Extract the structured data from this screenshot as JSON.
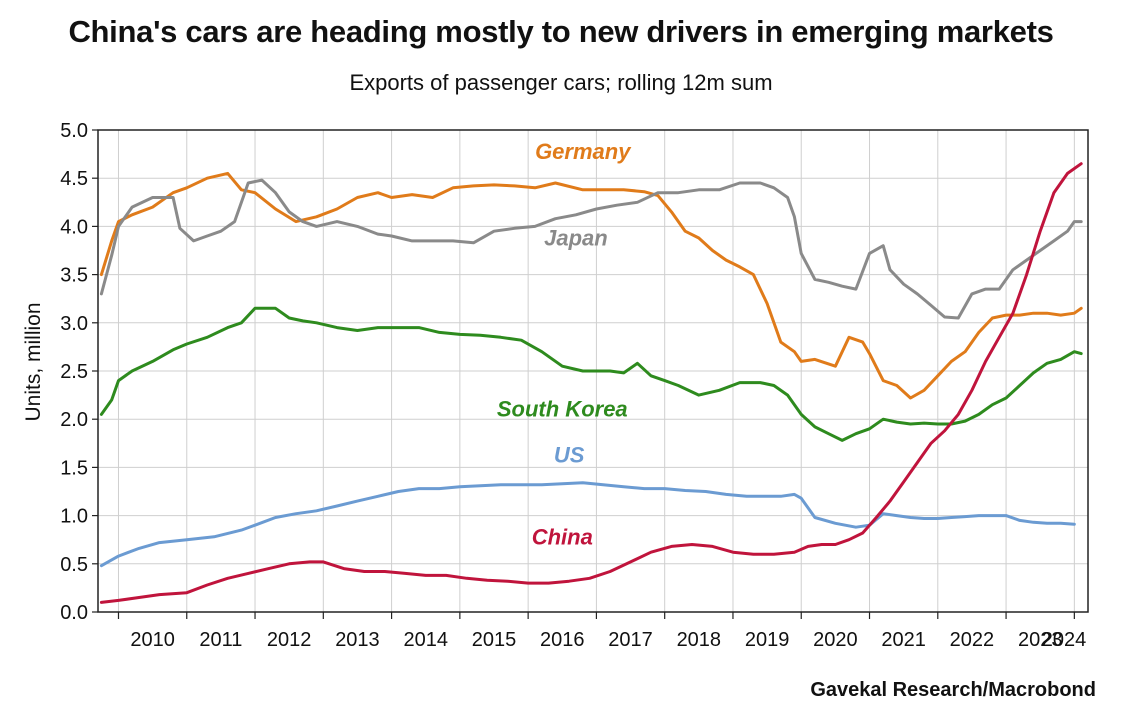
{
  "title": "China's cars are heading mostly to new drivers in emerging markets",
  "subtitle": "Exports of passenger cars; rolling 12m sum",
  "source": "Gavekal Research/Macrobond",
  "chart_data": {
    "type": "line",
    "ylabel": "Units, million",
    "ylim": [
      0,
      5.0
    ],
    "xlim": [
      2009.7,
      2024.2
    ],
    "yticks": [
      "0.0",
      "0.5",
      "1.0",
      "1.5",
      "2.0",
      "2.5",
      "3.0",
      "3.5",
      "4.0",
      "4.5",
      "5.0"
    ],
    "xticks": [
      "2010",
      "2011",
      "2012",
      "2013",
      "2014",
      "2015",
      "2016",
      "2017",
      "2018",
      "2019",
      "2020",
      "2021",
      "2022",
      "2023",
      "2024"
    ],
    "grid": true,
    "series": [
      {
        "name": "Germany",
        "color": "#E07B1A",
        "x": [
          2009.75,
          2009.9,
          2010.0,
          2010.2,
          2010.5,
          2010.8,
          2011.0,
          2011.3,
          2011.6,
          2011.8,
          2012.0,
          2012.3,
          2012.6,
          2012.9,
          2013.2,
          2013.5,
          2013.8,
          2014.0,
          2014.3,
          2014.6,
          2014.9,
          2015.2,
          2015.5,
          2015.8,
          2016.1,
          2016.4,
          2016.8,
          2017.1,
          2017.4,
          2017.7,
          2017.9,
          2018.1,
          2018.3,
          2018.5,
          2018.7,
          2018.9,
          2019.1,
          2019.3,
          2019.5,
          2019.7,
          2019.9,
          2020.0,
          2020.2,
          2020.5,
          2020.7,
          2020.9,
          2021.0,
          2021.2,
          2021.4,
          2021.6,
          2021.8,
          2022.0,
          2022.2,
          2022.4,
          2022.6,
          2022.8,
          2023.0,
          2023.2,
          2023.4,
          2023.6,
          2023.8,
          2024.0,
          2024.1
        ],
        "y": [
          3.5,
          3.85,
          4.05,
          4.12,
          4.2,
          4.35,
          4.4,
          4.5,
          4.55,
          4.38,
          4.35,
          4.18,
          4.05,
          4.1,
          4.18,
          4.3,
          4.35,
          4.3,
          4.33,
          4.3,
          4.4,
          4.42,
          4.43,
          4.42,
          4.4,
          4.45,
          4.38,
          4.38,
          4.38,
          4.36,
          4.32,
          4.15,
          3.95,
          3.88,
          3.75,
          3.65,
          3.58,
          3.5,
          3.2,
          2.8,
          2.7,
          2.6,
          2.62,
          2.55,
          2.85,
          2.8,
          2.68,
          2.4,
          2.35,
          2.22,
          2.3,
          2.45,
          2.6,
          2.7,
          2.9,
          3.05,
          3.08,
          3.08,
          3.1,
          3.1,
          3.08,
          3.1,
          3.15
        ]
      },
      {
        "name": "Japan",
        "color": "#8A8A8A",
        "x": [
          2009.75,
          2009.9,
          2010.0,
          2010.2,
          2010.5,
          2010.8,
          2010.9,
          2011.1,
          2011.3,
          2011.5,
          2011.7,
          2011.9,
          2012.1,
          2012.3,
          2012.5,
          2012.7,
          2012.9,
          2013.2,
          2013.5,
          2013.8,
          2014.0,
          2014.3,
          2014.6,
          2014.9,
          2015.2,
          2015.5,
          2015.8,
          2016.1,
          2016.4,
          2016.7,
          2017.0,
          2017.3,
          2017.6,
          2017.9,
          2018.2,
          2018.5,
          2018.8,
          2019.1,
          2019.4,
          2019.6,
          2019.8,
          2019.9,
          2020.0,
          2020.2,
          2020.4,
          2020.6,
          2020.8,
          2021.0,
          2021.2,
          2021.3,
          2021.5,
          2021.7,
          2021.9,
          2022.1,
          2022.3,
          2022.5,
          2022.7,
          2022.9,
          2023.1,
          2023.3,
          2023.5,
          2023.7,
          2023.9,
          2024.0,
          2024.1
        ],
        "y": [
          3.3,
          3.7,
          4.0,
          4.2,
          4.3,
          4.3,
          3.98,
          3.85,
          3.9,
          3.95,
          4.05,
          4.45,
          4.48,
          4.35,
          4.15,
          4.05,
          4.0,
          4.05,
          4.0,
          3.92,
          3.9,
          3.85,
          3.85,
          3.85,
          3.83,
          3.95,
          3.98,
          4.0,
          4.08,
          4.12,
          4.18,
          4.22,
          4.25,
          4.35,
          4.35,
          4.38,
          4.38,
          4.45,
          4.45,
          4.4,
          4.3,
          4.1,
          3.72,
          3.45,
          3.42,
          3.38,
          3.35,
          3.72,
          3.8,
          3.55,
          3.4,
          3.3,
          3.18,
          3.06,
          3.05,
          3.3,
          3.35,
          3.35,
          3.55,
          3.65,
          3.75,
          3.85,
          3.95,
          4.05,
          4.05
        ]
      },
      {
        "name": "South Korea",
        "color": "#2E8B1E",
        "x": [
          2009.75,
          2009.9,
          2010.0,
          2010.2,
          2010.5,
          2010.8,
          2011.0,
          2011.3,
          2011.6,
          2011.8,
          2012.0,
          2012.3,
          2012.5,
          2012.7,
          2012.9,
          2013.2,
          2013.5,
          2013.8,
          2014.1,
          2014.4,
          2014.7,
          2015.0,
          2015.3,
          2015.6,
          2015.9,
          2016.2,
          2016.5,
          2016.8,
          2017.0,
          2017.2,
          2017.4,
          2017.6,
          2017.8,
          2018.0,
          2018.2,
          2018.5,
          2018.8,
          2019.1,
          2019.4,
          2019.6,
          2019.8,
          2020.0,
          2020.2,
          2020.4,
          2020.6,
          2020.8,
          2021.0,
          2021.2,
          2021.4,
          2021.6,
          2021.8,
          2022.0,
          2022.2,
          2022.4,
          2022.6,
          2022.8,
          2023.0,
          2023.2,
          2023.4,
          2023.6,
          2023.8,
          2024.0,
          2024.1
        ],
        "y": [
          2.05,
          2.2,
          2.4,
          2.5,
          2.6,
          2.72,
          2.78,
          2.85,
          2.95,
          3.0,
          3.15,
          3.15,
          3.05,
          3.02,
          3.0,
          2.95,
          2.92,
          2.95,
          2.95,
          2.95,
          2.9,
          2.88,
          2.87,
          2.85,
          2.82,
          2.7,
          2.55,
          2.5,
          2.5,
          2.5,
          2.48,
          2.58,
          2.45,
          2.4,
          2.35,
          2.25,
          2.3,
          2.38,
          2.38,
          2.35,
          2.25,
          2.05,
          1.92,
          1.85,
          1.78,
          1.85,
          1.9,
          2.0,
          1.97,
          1.95,
          1.96,
          1.95,
          1.95,
          1.98,
          2.05,
          2.15,
          2.22,
          2.35,
          2.48,
          2.58,
          2.62,
          2.7,
          2.68
        ]
      },
      {
        "name": "US",
        "color": "#6B9BD2",
        "x": [
          2009.75,
          2010.0,
          2010.3,
          2010.6,
          2011.0,
          2011.4,
          2011.8,
          2012.0,
          2012.3,
          2012.6,
          2012.9,
          2013.2,
          2013.5,
          2013.8,
          2014.1,
          2014.4,
          2014.7,
          2015.0,
          2015.3,
          2015.6,
          2015.9,
          2016.2,
          2016.5,
          2016.8,
          2017.1,
          2017.4,
          2017.7,
          2018.0,
          2018.3,
          2018.6,
          2018.9,
          2019.2,
          2019.5,
          2019.7,
          2019.9,
          2020.0,
          2020.2,
          2020.5,
          2020.8,
          2021.0,
          2021.2,
          2021.4,
          2021.6,
          2021.8,
          2022.0,
          2022.2,
          2022.4,
          2022.6,
          2022.8,
          2023.0,
          2023.2,
          2023.4,
          2023.6,
          2023.8,
          2024.0
        ],
        "y": [
          0.48,
          0.58,
          0.66,
          0.72,
          0.75,
          0.78,
          0.85,
          0.9,
          0.98,
          1.02,
          1.05,
          1.1,
          1.15,
          1.2,
          1.25,
          1.28,
          1.28,
          1.3,
          1.31,
          1.32,
          1.32,
          1.32,
          1.33,
          1.34,
          1.32,
          1.3,
          1.28,
          1.28,
          1.26,
          1.25,
          1.22,
          1.2,
          1.2,
          1.2,
          1.22,
          1.18,
          0.98,
          0.92,
          0.88,
          0.9,
          1.02,
          1.0,
          0.98,
          0.97,
          0.97,
          0.98,
          0.99,
          1.0,
          1.0,
          1.0,
          0.95,
          0.93,
          0.92,
          0.92,
          0.91
        ]
      },
      {
        "name": "China",
        "color": "#C0143C",
        "x": [
          2009.75,
          2010.0,
          2010.3,
          2010.6,
          2011.0,
          2011.3,
          2011.6,
          2011.9,
          2012.2,
          2012.5,
          2012.8,
          2013.0,
          2013.3,
          2013.6,
          2013.9,
          2014.2,
          2014.5,
          2014.8,
          2015.1,
          2015.4,
          2015.7,
          2016.0,
          2016.3,
          2016.6,
          2016.9,
          2017.2,
          2017.5,
          2017.8,
          2018.1,
          2018.4,
          2018.7,
          2019.0,
          2019.3,
          2019.6,
          2019.9,
          2020.1,
          2020.3,
          2020.5,
          2020.7,
          2020.9,
          2021.1,
          2021.3,
          2021.5,
          2021.7,
          2021.9,
          2022.1,
          2022.3,
          2022.5,
          2022.7,
          2022.9,
          2023.1,
          2023.3,
          2023.5,
          2023.7,
          2023.9,
          2024.1
        ],
        "y": [
          0.1,
          0.12,
          0.15,
          0.18,
          0.2,
          0.28,
          0.35,
          0.4,
          0.45,
          0.5,
          0.52,
          0.52,
          0.45,
          0.42,
          0.42,
          0.4,
          0.38,
          0.38,
          0.35,
          0.33,
          0.32,
          0.3,
          0.3,
          0.32,
          0.35,
          0.42,
          0.52,
          0.62,
          0.68,
          0.7,
          0.68,
          0.62,
          0.6,
          0.6,
          0.62,
          0.68,
          0.7,
          0.7,
          0.75,
          0.82,
          0.98,
          1.15,
          1.35,
          1.55,
          1.75,
          1.88,
          2.05,
          2.3,
          2.6,
          2.85,
          3.1,
          3.5,
          3.95,
          4.35,
          4.55,
          4.65
        ]
      }
    ],
    "labels": [
      {
        "text": "Germany",
        "series": "Germany",
        "x": 2016.8,
        "y": 4.7
      },
      {
        "text": "Japan",
        "series": "Japan",
        "x": 2016.7,
        "y": 3.8
      },
      {
        "text": "South Korea",
        "series": "South Korea",
        "x": 2016.5,
        "y": 2.03
      },
      {
        "text": "US",
        "series": "US",
        "x": 2016.6,
        "y": 1.55
      },
      {
        "text": "China",
        "series": "China",
        "x": 2016.5,
        "y": 0.7
      }
    ]
  }
}
